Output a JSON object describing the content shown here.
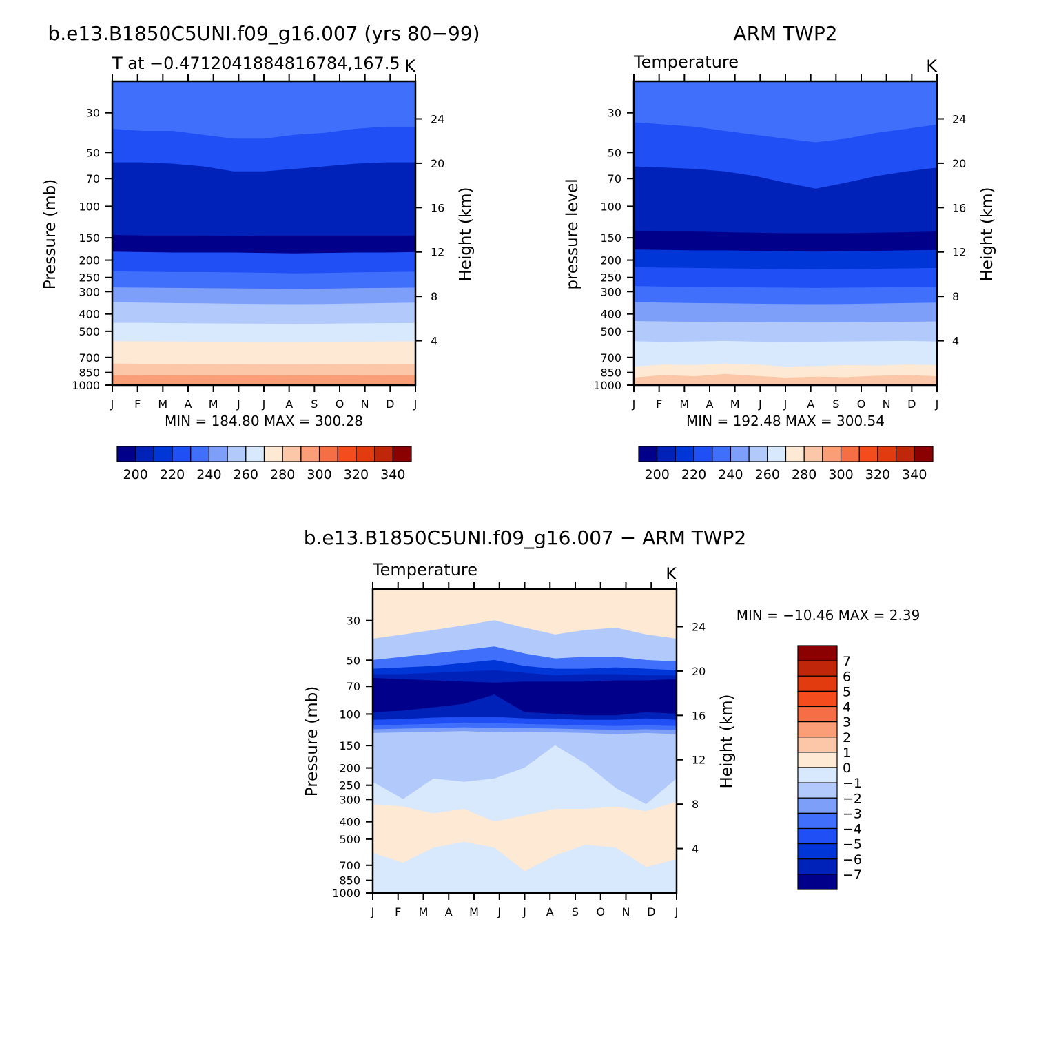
{
  "chart_data": [
    {
      "type": "heatmap",
      "id": "model",
      "title": "b.e13.B1850C5UNI.f09_g16.007 (yrs 80−99)",
      "subtitle_left": "T at −0.4712041884816784,167.5",
      "subtitle_right": "K",
      "ylabel": "Pressure (mb)",
      "ylabel_right": "Height (km)",
      "x_ticks": [
        "J",
        "F",
        "M",
        "A",
        "M",
        "J",
        "J",
        "A",
        "S",
        "O",
        "N",
        "D",
        "J"
      ],
      "y_ticks": [
        "30",
        "50",
        "70",
        "100",
        "150",
        "200",
        "250",
        "300",
        "400",
        "500",
        "700",
        "850",
        "1000"
      ],
      "y_ticks_right": [
        "24",
        "20",
        "16",
        "12",
        "8",
        "4"
      ],
      "stats": "MIN =  184.80 MAX =  300.28",
      "colorbar_labels": [
        "200",
        "220",
        "240",
        "260",
        "280",
        "300",
        "320",
        "340"
      ],
      "band_level_index": [
        4,
        3,
        1,
        0,
        3,
        4,
        5,
        6,
        7,
        8,
        9,
        10,
        11
      ],
      "band_boundaries_mb": [
        [
          37,
          38,
          38,
          40,
          42,
          42,
          40,
          39,
          37,
          36,
          36
        ],
        [
          57,
          57,
          58,
          60,
          64,
          64,
          62,
          60,
          58,
          57,
          57
        ],
        [
          145,
          146,
          146,
          146,
          147,
          146,
          146,
          146,
          146,
          146,
          146
        ],
        [
          180,
          181,
          182,
          182,
          182,
          183,
          184,
          183,
          182,
          182,
          181
        ],
        [
          232,
          233,
          234,
          234,
          235,
          236,
          238,
          237,
          235,
          234,
          233
        ],
        [
          285,
          286,
          287,
          288,
          289,
          290,
          291,
          290,
          288,
          287,
          286
        ],
        [
          345,
          347,
          349,
          350,
          352,
          353,
          354,
          353,
          351,
          349,
          347
        ],
        [
          450,
          450,
          452,
          453,
          454,
          455,
          456,
          455,
          453,
          452,
          451
        ],
        [
          570,
          571,
          572,
          573,
          574,
          575,
          575,
          574,
          573,
          572,
          571
        ],
        [
          760,
          762,
          763,
          764,
          765,
          766,
          766,
          765,
          764,
          763,
          762
        ],
        [
          880,
          882,
          883,
          884,
          885,
          885,
          884,
          883,
          882,
          881,
          880
        ],
        [
          1000,
          1000,
          1000,
          1000,
          1000,
          1000,
          1000,
          1000,
          1000,
          1000,
          1000
        ]
      ]
    },
    {
      "type": "heatmap",
      "id": "obs",
      "title": "ARM TWP2",
      "subtitle_left": "Temperature",
      "subtitle_right": "K",
      "ylabel": "pressure level",
      "ylabel_right": "Height (km)",
      "x_ticks": [
        "J",
        "F",
        "M",
        "A",
        "M",
        "J",
        "J",
        "A",
        "S",
        "O",
        "N",
        "D",
        "J"
      ],
      "y_ticks": [
        "30",
        "50",
        "70",
        "100",
        "150",
        "200",
        "250",
        "300",
        "400",
        "500",
        "700",
        "850",
        "1000"
      ],
      "y_ticks_right": [
        "24",
        "20",
        "16",
        "12",
        "8",
        "4"
      ],
      "stats": "MIN =  192.48 MAX =  300.54",
      "colorbar_labels": [
        "200",
        "220",
        "240",
        "260",
        "280",
        "300",
        "320",
        "340"
      ],
      "band_level_index": [
        4,
        3,
        1,
        0,
        2,
        3,
        4,
        5,
        6,
        7,
        8,
        9,
        10
      ],
      "band_boundaries_mb": [
        [
          34,
          35,
          36,
          38,
          40,
          42,
          44,
          42,
          39,
          37,
          35
        ],
        [
          60,
          61,
          62,
          64,
          68,
          74,
          80,
          74,
          68,
          64,
          61
        ],
        [
          138,
          139,
          139,
          140,
          141,
          142,
          142,
          142,
          141,
          140,
          139
        ],
        [
          175,
          176,
          177,
          177,
          178,
          179,
          180,
          179,
          178,
          177,
          176
        ],
        [
          220,
          221,
          222,
          223,
          224,
          225,
          226,
          225,
          224,
          223,
          222
        ],
        [
          280,
          282,
          283,
          284,
          285,
          286,
          287,
          286,
          285,
          284,
          283
        ],
        [
          345,
          347,
          349,
          350,
          352,
          353,
          354,
          353,
          351,
          349,
          347
        ],
        [
          440,
          442,
          444,
          445,
          446,
          447,
          448,
          447,
          446,
          444,
          442
        ],
        [
          570,
          575,
          572,
          568,
          573,
          575,
          574,
          572,
          570,
          568,
          572
        ],
        [
          790,
          770,
          775,
          760,
          770,
          790,
          785,
          775,
          780,
          770,
          775
        ],
        [
          910,
          880,
          895,
          870,
          890,
          910,
          900,
          905,
          890,
          880,
          895
        ],
        [
          1000,
          1000,
          1000,
          1000,
          1000,
          1000,
          1000,
          1000,
          1000,
          1000,
          1000
        ]
      ]
    },
    {
      "type": "heatmap",
      "id": "diff",
      "title": "b.e13.B1850C5UNI.f09_g16.007 − ARM TWP2",
      "subtitle_left": "Temperature",
      "subtitle_right": "K",
      "ylabel": "Pressure (mb)",
      "ylabel_right": "Height (km)",
      "x_ticks": [
        "J",
        "F",
        "M",
        "A",
        "M",
        "J",
        "J",
        "A",
        "S",
        "O",
        "N",
        "D",
        "J"
      ],
      "y_ticks": [
        "30",
        "50",
        "70",
        "100",
        "150",
        "200",
        "250",
        "300",
        "400",
        "500",
        "700",
        "850",
        "1000"
      ],
      "y_ticks_right": [
        "24",
        "20",
        "16",
        "12",
        "8",
        "4"
      ],
      "stats": "MIN = −10.46 MAX =    2.39",
      "colorbar_labels": [
        "7",
        "6",
        "5",
        "4",
        "3",
        "2",
        "1",
        "0",
        "−1",
        "−2",
        "−3",
        "−4",
        "−5",
        "−6",
        "−7"
      ],
      "band_level_index": [
        8,
        6,
        4,
        2,
        1,
        0,
        1,
        3,
        4,
        5,
        6,
        7,
        8,
        7,
        8
      ],
      "band_boundaries_mb": [
        [
          38,
          36,
          34,
          32,
          30,
          33,
          36,
          34,
          33,
          36,
          38
        ],
        [
          50,
          48,
          46,
          44,
          42,
          46,
          49,
          48,
          48,
          50,
          51
        ],
        [
          56,
          55,
          54,
          52,
          50,
          54,
          56,
          56,
          55,
          56,
          57
        ],
        [
          60,
          60,
          59,
          58,
          57,
          59,
          61,
          60,
          60,
          61,
          61
        ],
        [
          63,
          64,
          65,
          66,
          67,
          66,
          66,
          66,
          65,
          65,
          64
        ],
        [
          98,
          96,
          92,
          88,
          78,
          98,
          100,
          102,
          102,
          98,
          100
        ],
        [
          108,
          107,
          105,
          104,
          104,
          106,
          107,
          108,
          108,
          106,
          108
        ],
        [
          116,
          115,
          114,
          112,
          113,
          114,
          115,
          116,
          117,
          116,
          117
        ],
        [
          122,
          121,
          120,
          119,
          120,
          120,
          121,
          122,
          123,
          122,
          123
        ],
        [
          128,
          127,
          126,
          125,
          127,
          126,
          127,
          128,
          130,
          128,
          130
        ],
        [
          240,
          300,
          230,
          240,
          230,
          200,
          150,
          190,
          260,
          320,
          230
        ],
        [
          320,
          330,
          360,
          340,
          400,
          370,
          340,
          340,
          330,
          350,
          310
        ],
        [
          600,
          680,
          560,
          520,
          560,
          760,
          620,
          540,
          560,
          720,
          650
        ],
        [
          1000,
          1000,
          1000,
          1000,
          1000,
          1000,
          1000,
          1000,
          1000,
          1000,
          1000
        ]
      ]
    }
  ],
  "colors": {
    "temp_palette": [
      "#00008b",
      "#0022b8",
      "#0036d8",
      "#1f4ff5",
      "#4070fb",
      "#7e9ff9",
      "#b2c9fc",
      "#d8e8fd",
      "#fde9d4",
      "#fcc6a8",
      "#f99e77",
      "#f66e46",
      "#f54c1d",
      "#e33b10",
      "#c0270a",
      "#8b0000"
    ],
    "diff_palette": [
      "#00008b",
      "#0022b8",
      "#0036d8",
      "#1f4ff5",
      "#4070fb",
      "#7e9ff9",
      "#b2c9fc",
      "#d8e8fd",
      "#fde9d4",
      "#fcc6a8",
      "#f99e77",
      "#f66e46",
      "#f54c1d",
      "#e33b10",
      "#c0270a",
      "#8b0000"
    ]
  }
}
